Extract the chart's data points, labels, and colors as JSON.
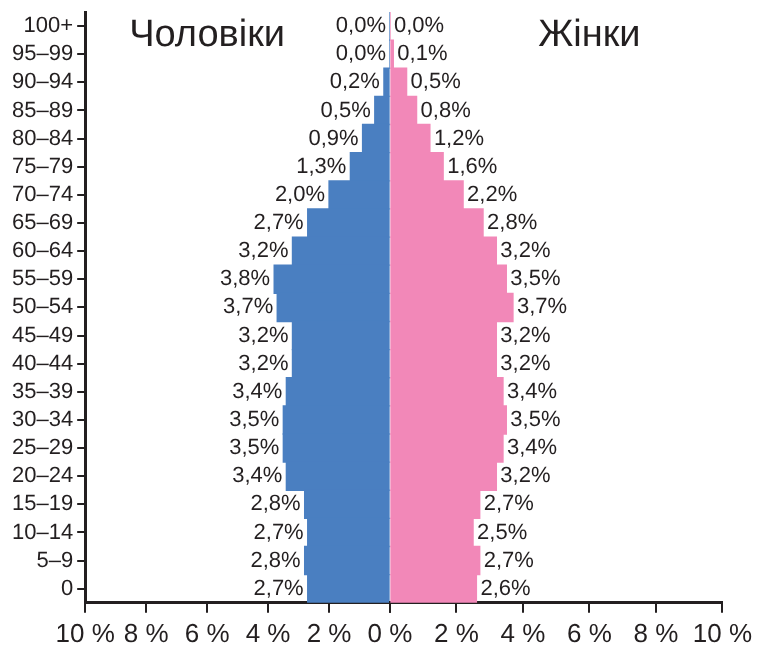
{
  "chart_data": [
    {
      "type": "bar",
      "orientation": "horizontal",
      "legend": false,
      "grid": false,
      "categories": [
        "100+",
        "95–99",
        "90–94",
        "85–89",
        "80–84",
        "75–79",
        "70–74",
        "65–69",
        "60–64",
        "55–59",
        "50–54",
        "45–49",
        "40–44",
        "35–39",
        "30–34",
        "25–29",
        "20–24",
        "15–19",
        "10–14",
        "5–9",
        "0"
      ],
      "xlim": [
        10,
        0
      ],
      "xticks": [
        {
          "value": 10,
          "label": "10 %"
        },
        {
          "value": 8,
          "label": "8 %"
        },
        {
          "value": 6,
          "label": "6 %"
        },
        {
          "value": 4,
          "label": "4 %"
        },
        {
          "value": 2,
          "label": "2 %"
        },
        {
          "value": 0,
          "label": null
        }
      ],
      "series": [
        {
          "name": "Чоловіки",
          "color": "#4a7fc1",
          "values": [
            0,
            0,
            0.2,
            0.5,
            0.9,
            1.3,
            2.0,
            2.7,
            3.2,
            3.8,
            3.7,
            3.2,
            3.2,
            3.4,
            3.5,
            3.5,
            3.4,
            2.8,
            2.7,
            2.8,
            2.7
          ],
          "value_labels": [
            "0,0%",
            "0,0%",
            "0,2%",
            "0,5%",
            "0,9%",
            "1,3%",
            "2,0%",
            "2,7%",
            "3,2%",
            "3,8%",
            "3,7%",
            "3,2%",
            "3,2%",
            "3,4%",
            "3,5%",
            "3,5%",
            "3,4%",
            "2,8%",
            "2,7%",
            "2,8%",
            "2,7%"
          ]
        }
      ]
    },
    {
      "type": "bar",
      "orientation": "horizontal",
      "legend": false,
      "grid": false,
      "tick_labels": "x",
      "categories": [
        null,
        null,
        null,
        null,
        null,
        null,
        null,
        null,
        null,
        null,
        null,
        null,
        null,
        null,
        null,
        null,
        null,
        null,
        null,
        null,
        null
      ],
      "xlim": [
        0,
        10
      ],
      "xticks": [
        {
          "value": 0,
          "label": "0 %"
        },
        {
          "value": 2,
          "label": "2 %"
        },
        {
          "value": 4,
          "label": "4 %"
        },
        {
          "value": 6,
          "label": "6 %"
        },
        {
          "value": 8,
          "label": "8 %"
        },
        {
          "value": 10,
          "label": "10 %"
        }
      ],
      "series": [
        {
          "name": "Жінки",
          "color": "#f288b8",
          "values": [
            0,
            0.1,
            0.5,
            0.8,
            1.2,
            1.6,
            2.2,
            2.8,
            3.2,
            3.5,
            3.7,
            3.2,
            3.2,
            3.4,
            3.5,
            3.4,
            3.2,
            2.7,
            2.5,
            2.7,
            2.6
          ],
          "value_labels": [
            "0,0%",
            "0,1%",
            "0,5%",
            "0,8%",
            "1,2%",
            "1,6%",
            "2,2%",
            "2,8%",
            "3,2%",
            "3,5%",
            "3,7%",
            "3,2%",
            "3,2%",
            "3,4%",
            "3,5%",
            "3,4%",
            "3,2%",
            "2,7%",
            "2,5%",
            "2,7%",
            "2,6%"
          ]
        }
      ]
    }
  ]
}
